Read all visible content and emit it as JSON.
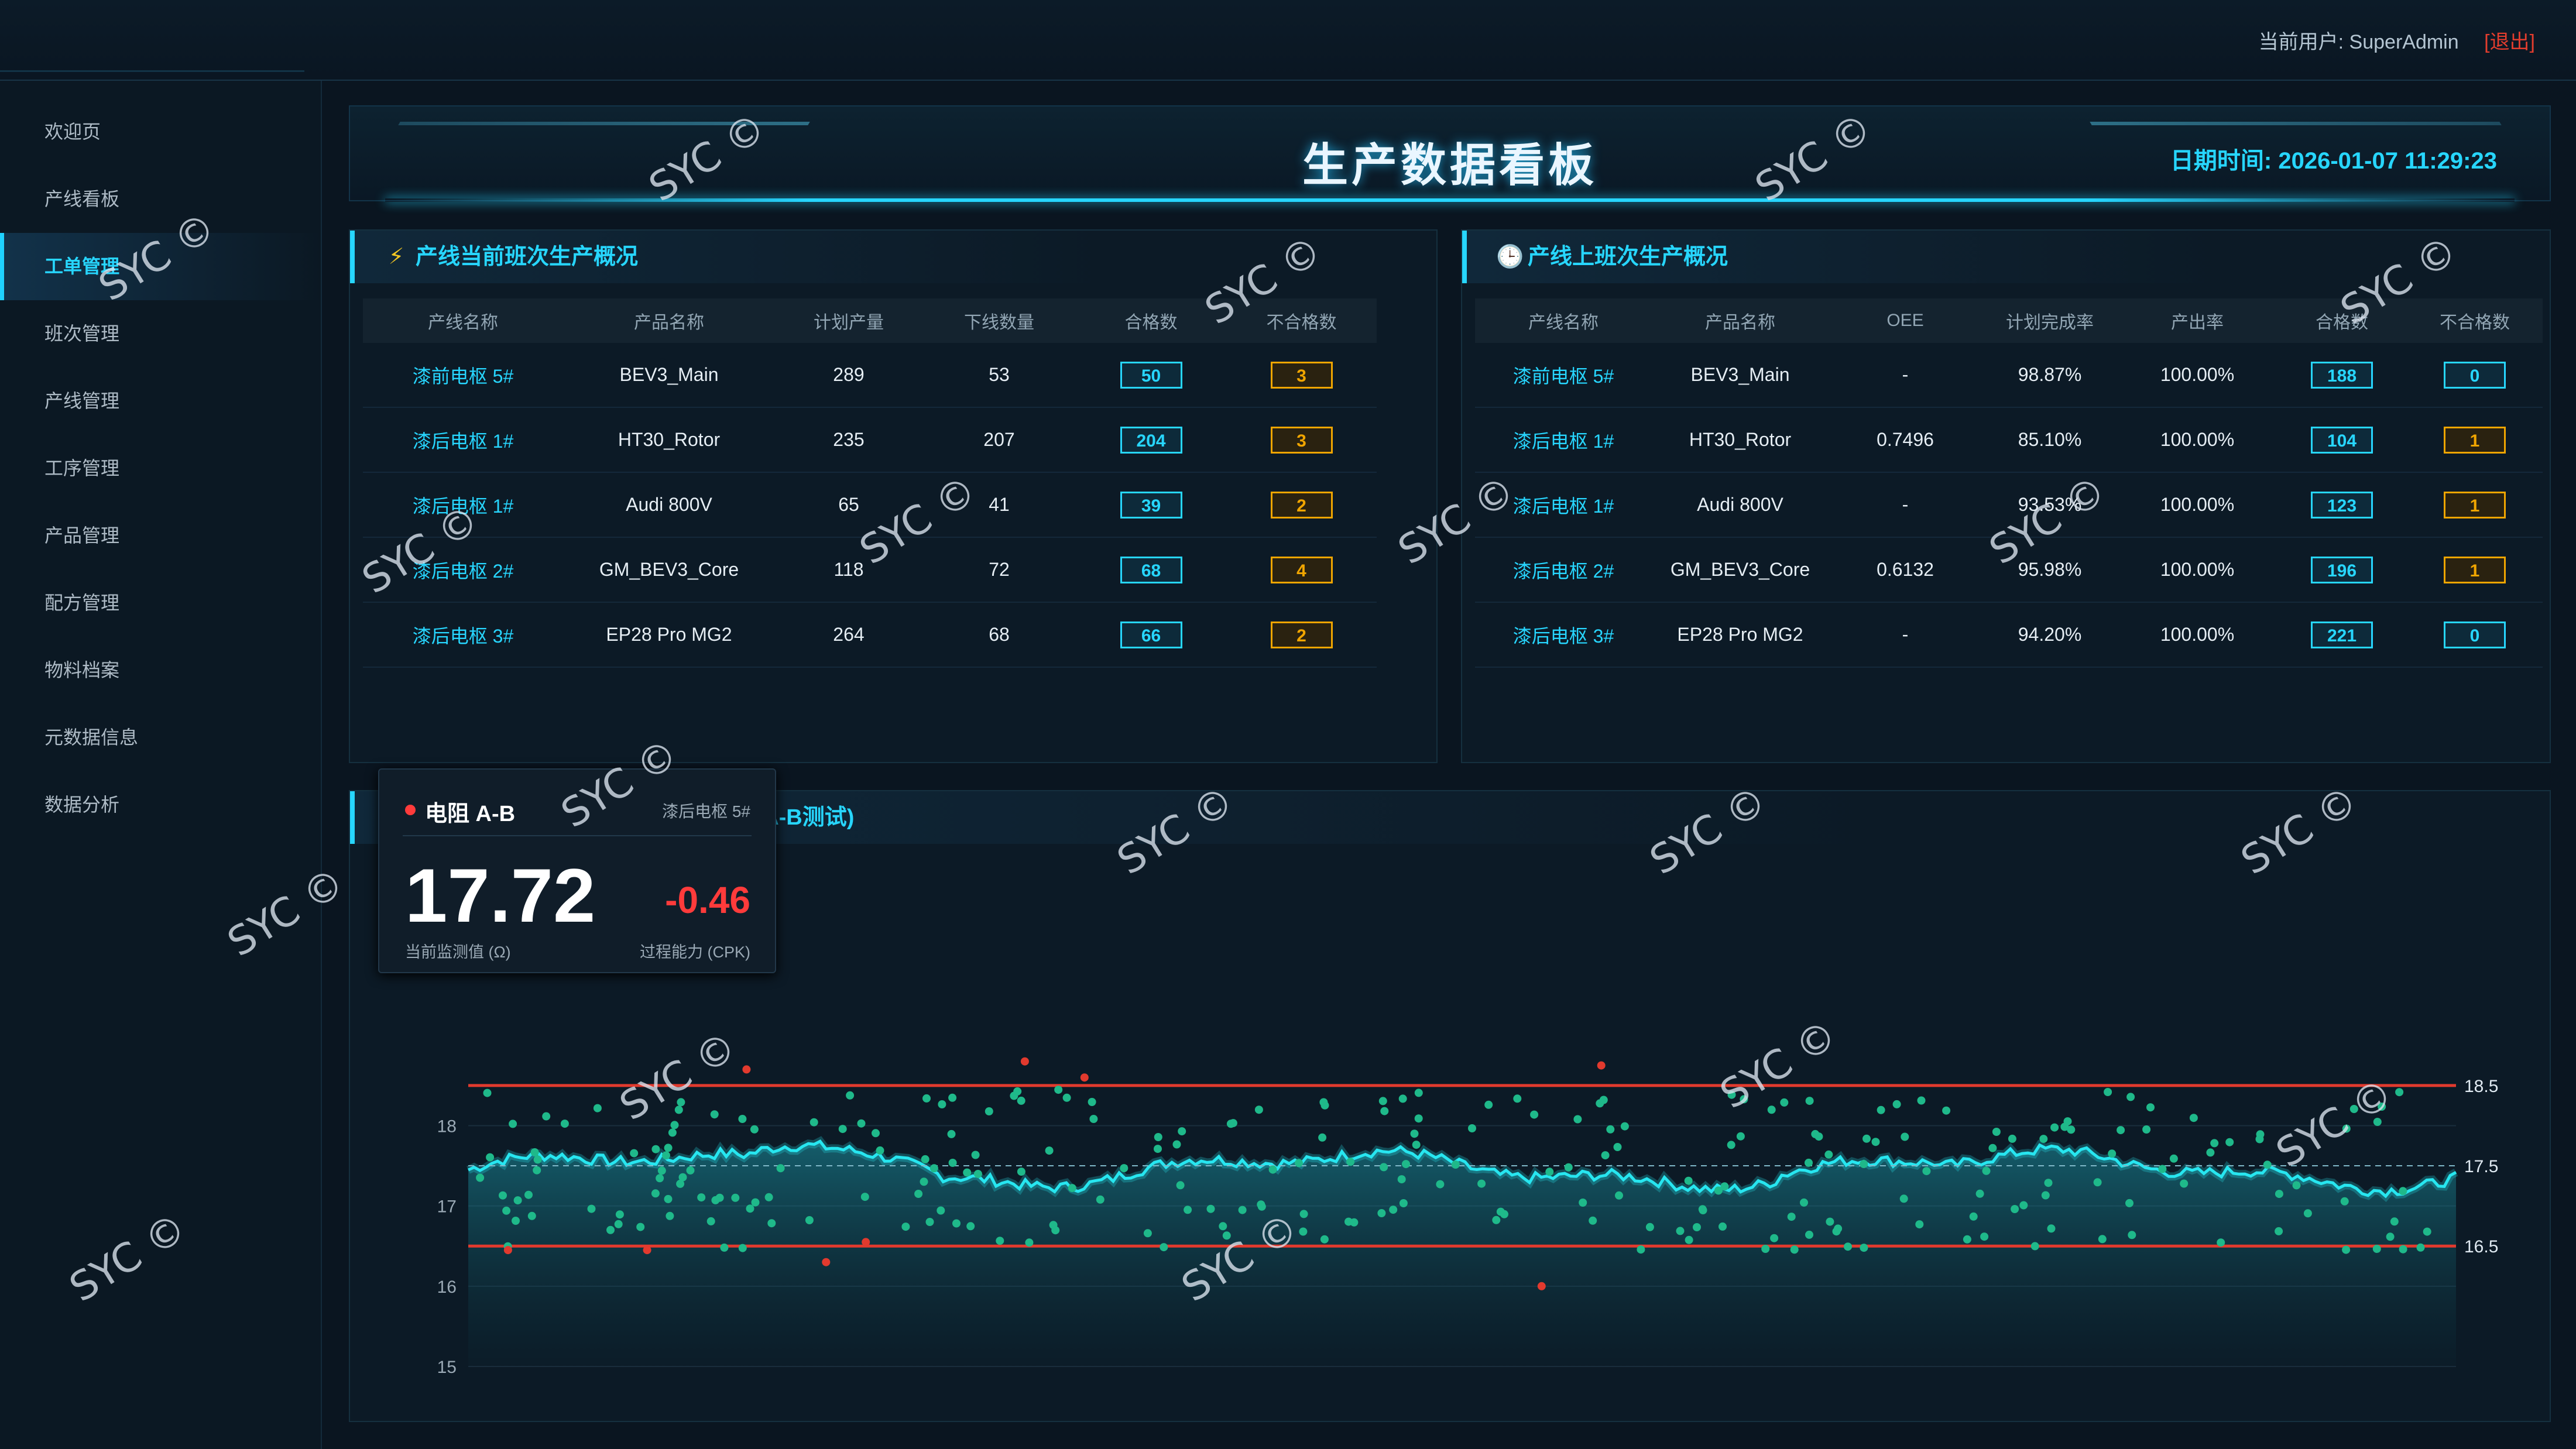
{
  "header": {
    "user_label": "当前用户: SuperAdmin",
    "logout_label": "[退出]"
  },
  "sidebar": {
    "items": [
      {
        "label": "欢迎页"
      },
      {
        "label": "产线看板"
      },
      {
        "label": "工单管理"
      },
      {
        "label": "班次管理"
      },
      {
        "label": "产线管理"
      },
      {
        "label": "工序管理"
      },
      {
        "label": "产品管理"
      },
      {
        "label": "配方管理"
      },
      {
        "label": "物料档案"
      },
      {
        "label": "元数据信息"
      },
      {
        "label": "数据分析"
      }
    ],
    "active_index": 2
  },
  "dashboard": {
    "title": "生产数据看板",
    "datetime": "日期时间: 2026-01-07 11:29:23"
  },
  "current_shift": {
    "title": "产线当前班次生产概况",
    "icon": "lightning-icon",
    "columns": [
      "产线名称",
      "产品名称",
      "计划产量",
      "下线数量",
      "合格数",
      "不合格数"
    ],
    "rows": [
      [
        "漆前电枢 5#",
        "BEV3_Main",
        "289",
        "53",
        "50",
        "3"
      ],
      [
        "漆后电枢 1#",
        "HT30_Rotor",
        "235",
        "207",
        "204",
        "3"
      ],
      [
        "漆后电枢 1#",
        "Audi 800V",
        "65",
        "41",
        "39",
        "2"
      ],
      [
        "漆后电枢 2#",
        "GM_BEV3_Core",
        "118",
        "72",
        "68",
        "4"
      ],
      [
        "漆后电枢 3#",
        "EP28 Pro MG2",
        "264",
        "68",
        "66",
        "2"
      ]
    ]
  },
  "previous_shift": {
    "title": "产线上班次生产概况",
    "icon": "clock-icon",
    "columns": [
      "产线名称",
      "产品名称",
      "OEE",
      "计划完成率",
      "产出率",
      "合格数",
      "不合格数"
    ],
    "rows": [
      [
        "漆前电枢 5#",
        "BEV3_Main",
        "-",
        "98.87%",
        "100.00%",
        "188",
        "0"
      ],
      [
        "漆后电枢 1#",
        "HT30_Rotor",
        "0.7496",
        "85.10%",
        "100.00%",
        "104",
        "1"
      ],
      [
        "漆后电枢 1#",
        "Audi 800V",
        "-",
        "93.53%",
        "100.00%",
        "123",
        "1"
      ],
      [
        "漆后电枢 2#",
        "GM_BEV3_Core",
        "0.6132",
        "95.98%",
        "100.00%",
        "196",
        "1"
      ],
      [
        "漆后电枢 3#",
        "EP28 Pro MG2",
        "-",
        "94.20%",
        "100.00%",
        "221",
        "0"
      ]
    ]
  },
  "cpk": {
    "title": "产线过程能力数据分析 (CPK - 电阻A-B测试)",
    "icon": "chart-icon",
    "metric_name": "电阻 A-B",
    "line_name": "漆后电枢 5#",
    "current_value": "17.72",
    "cpk_value": "-0.46",
    "current_label": "当前监测值 (Ω)",
    "cpk_label": "过程能力 (CPK)"
  },
  "chart_data": {
    "type": "line",
    "y_ticks": [
      "18",
      "17",
      "16",
      "15"
    ],
    "ylim": [
      15,
      18.9
    ],
    "usl": 18.5,
    "center": 17.5,
    "lsl": 16.5,
    "limit_labels": [
      "18.5",
      "17.5",
      "16.5"
    ],
    "colors": {
      "line": "#27e6f0",
      "limit": "#e23a2e",
      "points_in": "#1fb98a",
      "points_out": "#e23a2e"
    }
  },
  "watermark": "SYC ©"
}
